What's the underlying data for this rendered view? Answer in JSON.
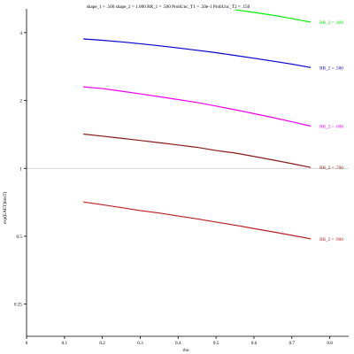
{
  "chart_data": {
    "type": "line",
    "title": "shape_1 = .500  shape_2 = 1.000  RR_1 = .500  ProbUnc_T1 = .50e-1  ProbUnc_T2 = .150",
    "xlabel": "rho",
    "ylabel": "exp(EAET)lmsT)",
    "x_ticks": [
      "0",
      "0.1",
      "0.2",
      "0.3",
      "0.4",
      "0.5",
      "0.6",
      "0.7",
      "0.8"
    ],
    "x_tick_values": [
      0,
      0.1,
      0.2,
      0.3,
      0.4,
      0.5,
      0.6,
      0.7,
      0.8
    ],
    "y_ticks": [
      "0.25",
      "0.5",
      "1",
      "2",
      "4"
    ],
    "y_tick_values": [
      0.25,
      0.5,
      1,
      2,
      4
    ],
    "xlim": [
      0,
      0.85
    ],
    "ylim": [
      0.18,
      5.1
    ],
    "y_scale": "log",
    "reference_line": {
      "y": 1,
      "color": "#c8c8c8"
    },
    "series": [
      {
        "name": "RR_2 = .400",
        "color": "#00ee00",
        "x": [
          0.55,
          0.6,
          0.65,
          0.7,
          0.75
        ],
        "y": [
          5.05,
          4.92,
          4.78,
          4.62,
          4.45
        ]
      },
      {
        "name": "RR_2 = .500",
        "color": "#0000cc",
        "x": [
          0.15,
          0.2,
          0.25,
          0.3,
          0.35,
          0.4,
          0.45,
          0.5,
          0.55,
          0.6,
          0.65,
          0.7,
          0.75
        ],
        "y": [
          3.75,
          3.7,
          3.64,
          3.57,
          3.5,
          3.42,
          3.34,
          3.26,
          3.17,
          3.08,
          2.99,
          2.9,
          2.8
        ]
      },
      {
        "name": "RR_2 = .600",
        "color": "#ee00ee",
        "x": [
          0.15,
          0.2,
          0.25,
          0.3,
          0.35,
          0.4,
          0.45,
          0.5,
          0.55,
          0.6,
          0.65,
          0.7,
          0.75
        ],
        "y": [
          2.3,
          2.26,
          2.2,
          2.14,
          2.08,
          2.02,
          1.96,
          1.89,
          1.82,
          1.75,
          1.68,
          1.61,
          1.54
        ]
      },
      {
        "name": "RR_2 = .700",
        "color": "#8b1a1a",
        "x": [
          0.15,
          0.2,
          0.25,
          0.3,
          0.35,
          0.4,
          0.45,
          0.5,
          0.55,
          0.6,
          0.65,
          0.7,
          0.75
        ],
        "y": [
          1.42,
          1.39,
          1.36,
          1.33,
          1.3,
          1.27,
          1.24,
          1.2,
          1.17,
          1.13,
          1.09,
          1.05,
          1.01
        ]
      },
      {
        "name": "RR_2 = .800",
        "color": "#bb2222",
        "x": [
          0.15,
          0.2,
          0.25,
          0.3,
          0.35,
          0.4,
          0.45,
          0.5,
          0.55,
          0.6,
          0.65,
          0.7,
          0.75
        ],
        "y": [
          0.71,
          0.69,
          0.67,
          0.65,
          0.634,
          0.615,
          0.597,
          0.578,
          0.56,
          0.541,
          0.523,
          0.505,
          0.487
        ]
      }
    ]
  }
}
